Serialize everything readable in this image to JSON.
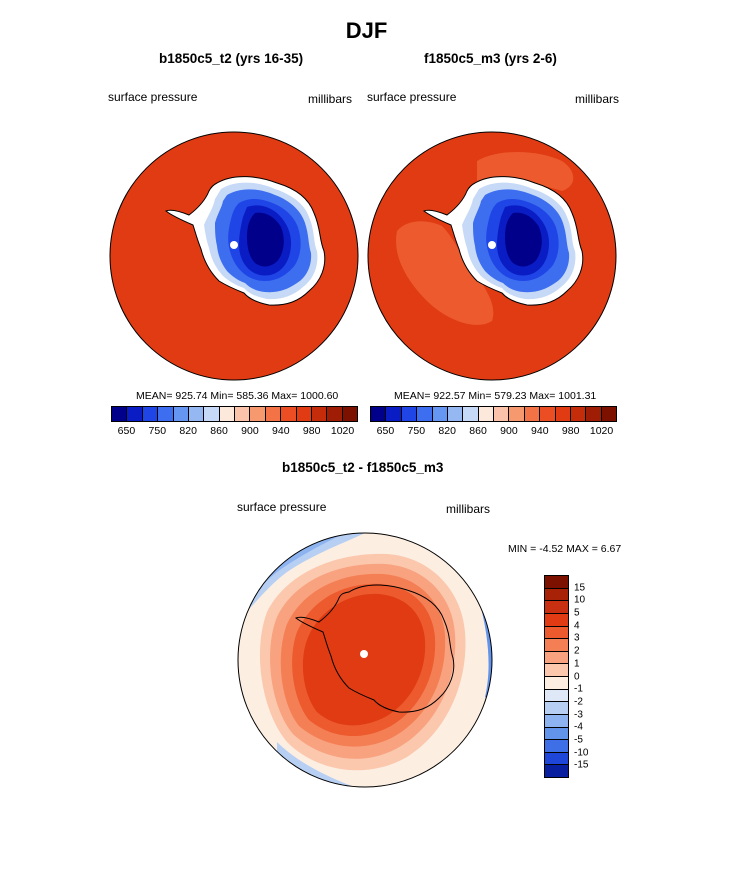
{
  "title": "DJF",
  "chart_data": [
    {
      "type": "heatmap",
      "projection": "south polar stereographic",
      "title": "b1850c5_t2 (yrs 16-35)",
      "left_label": "surface pressure",
      "right_label": "millibars",
      "stats": {
        "mean": "925.74",
        "min": "585.36",
        "max": "1000.60"
      },
      "stats_text": "MEAN= 925.74  Min= 585.36  Max= 1000.60",
      "colorbar_levels": [
        "650",
        "750",
        "820",
        "860",
        "900",
        "940",
        "980",
        "1020"
      ],
      "colors": [
        "#00008a",
        "#0a1cc4",
        "#1f45e6",
        "#3c6eef",
        "#6596f2",
        "#95b8f3",
        "#c6d9f6",
        "#fde8dc",
        "#fbc3a9",
        "#f7996f",
        "#f37347",
        "#ec4e24",
        "#e03b12",
        "#c42c0a",
        "#9e1d04",
        "#7d1100"
      ]
    },
    {
      "type": "heatmap",
      "projection": "south polar stereographic",
      "title": "f1850c5_m3 (yrs 2-6)",
      "left_label": "surface pressure",
      "right_label": "millibars",
      "stats": {
        "mean": "922.57",
        "min": "579.23",
        "max": "1001.31"
      },
      "stats_text": "MEAN= 922.57  Min= 579.23  Max= 1001.31",
      "colorbar_levels": [
        "650",
        "750",
        "820",
        "860",
        "900",
        "940",
        "980",
        "1020"
      ],
      "colors": [
        "#00008a",
        "#0a1cc4",
        "#1f45e6",
        "#3c6eef",
        "#6596f2",
        "#95b8f3",
        "#c6d9f6",
        "#fde8dc",
        "#fbc3a9",
        "#f7996f",
        "#f37347",
        "#ec4e24",
        "#e03b12",
        "#c42c0a",
        "#9e1d04",
        "#7d1100"
      ]
    },
    {
      "type": "heatmap",
      "projection": "south polar stereographic",
      "title": "b1850c5_t2 - f1850c5_m3",
      "left_label": "surface pressure",
      "right_label": "millibars",
      "stats": {
        "min": "-4.52",
        "max": "6.67"
      },
      "stats_text": "MIN =  -4.52 MAX =   6.67",
      "colorbar_levels": [
        "15",
        "10",
        "5",
        "4",
        "3",
        "2",
        "1",
        "0",
        "-1",
        "-2",
        "-3",
        "-4",
        "-5",
        "-10",
        "-15"
      ],
      "colors": [
        "#7d1100",
        "#a82208",
        "#c93012",
        "#e03b12",
        "#ec5a2e",
        "#f47f54",
        "#f8a27f",
        "#fbc7ad",
        "#fdeee2",
        "#dfe8f7",
        "#b6cff3",
        "#8db3f0",
        "#6394ec",
        "#3f6fe7",
        "#1e46d9",
        "#08209f"
      ]
    }
  ]
}
